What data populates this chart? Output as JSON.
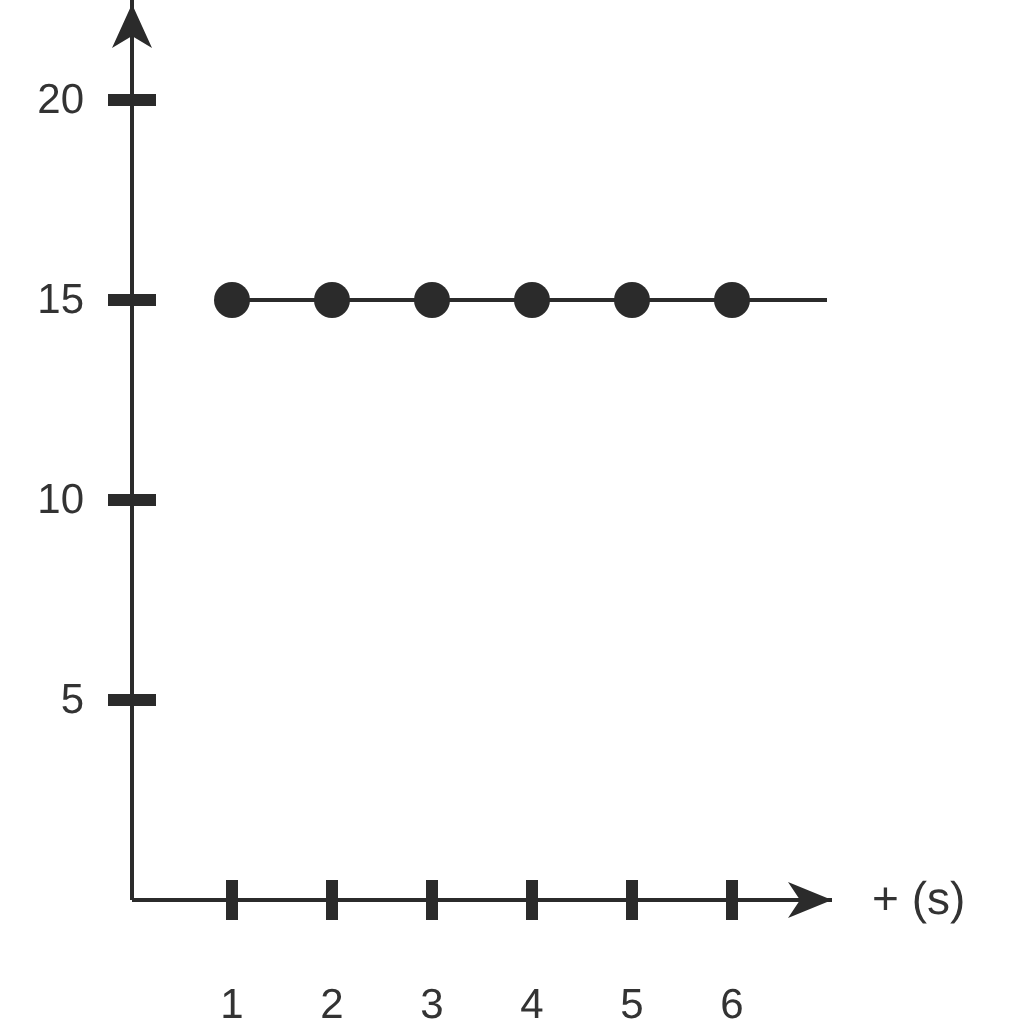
{
  "chart_data": {
    "type": "line",
    "xlabel": "+ (s)",
    "xlim": [
      0,
      7
    ],
    "ylim": [
      0,
      22.5
    ],
    "xticks": [
      1,
      2,
      3,
      4,
      5,
      6
    ],
    "yticks": [
      5,
      10,
      15,
      20
    ],
    "grid": false,
    "line_style": "solid",
    "series": [
      {
        "color": "#2b2b2b",
        "x": [
          1,
          6.95
        ],
        "values": [
          15,
          15
        ],
        "marker": "none"
      },
      {
        "type": "scatter",
        "color": "#2b2b2b",
        "x": [
          1,
          2,
          3,
          4,
          5,
          6
        ],
        "values": [
          15,
          15,
          15,
          15,
          15,
          15
        ],
        "marker": "circle"
      }
    ]
  }
}
